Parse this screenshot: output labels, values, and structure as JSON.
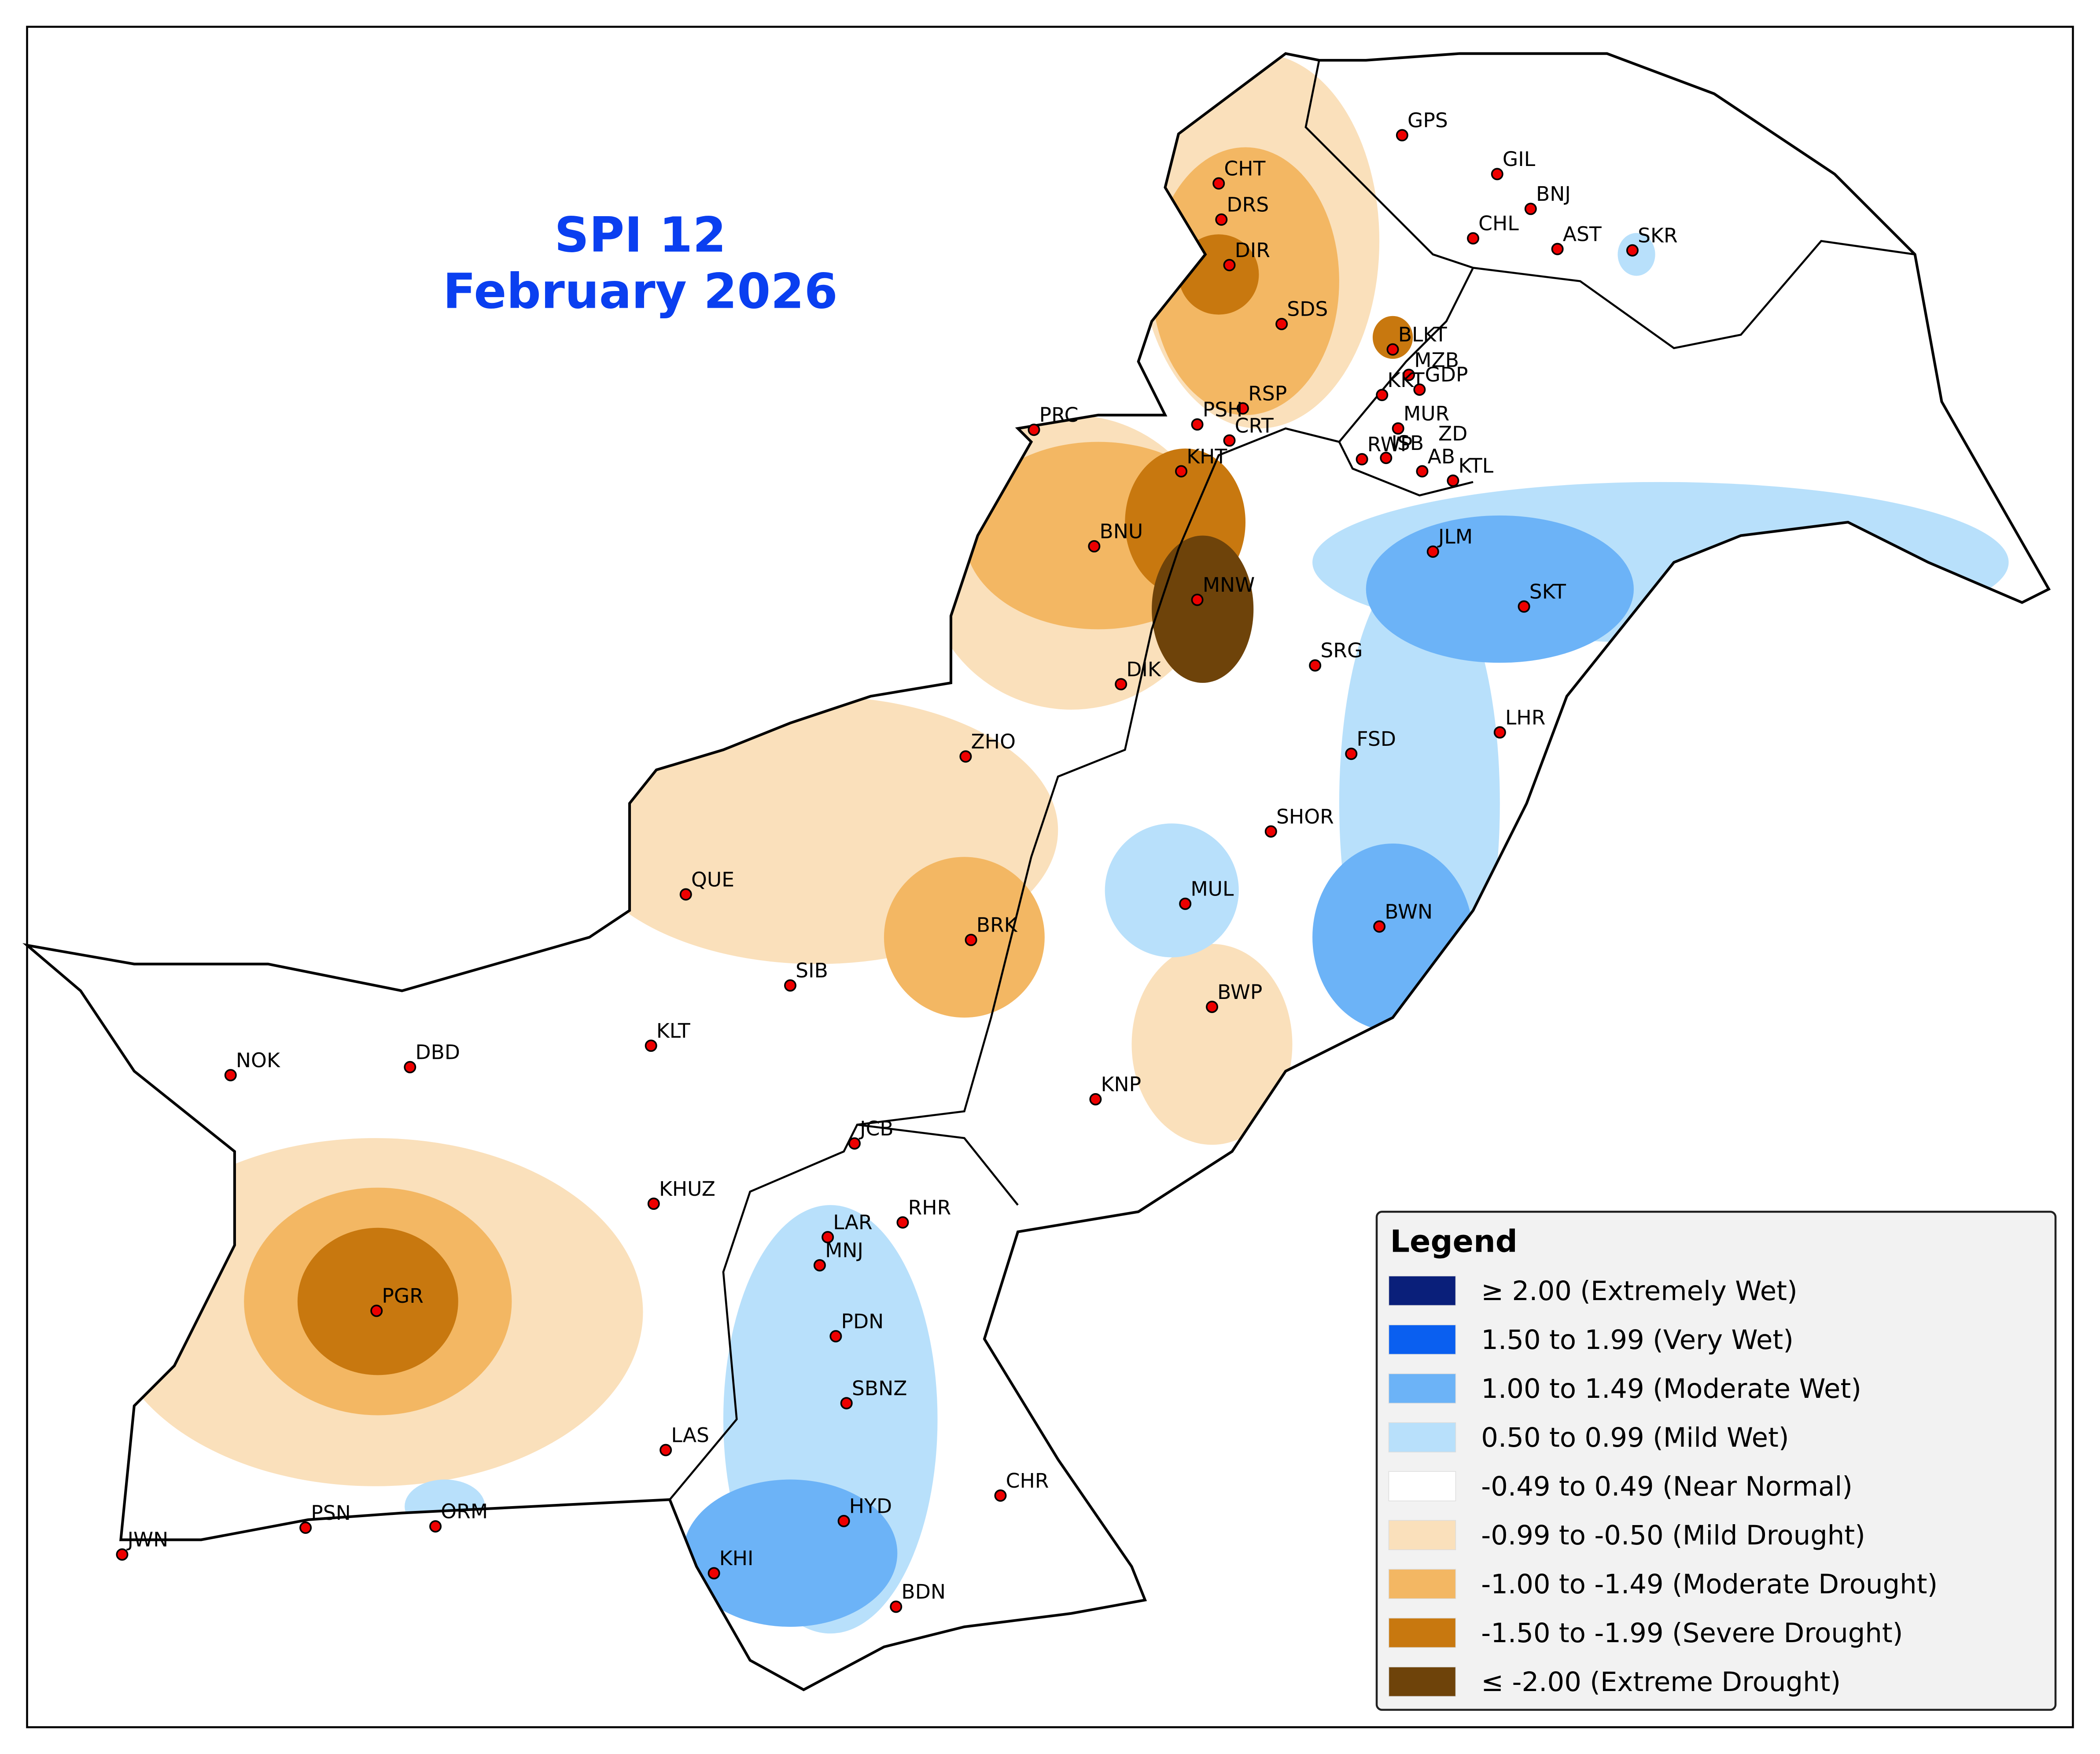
{
  "title": "SPI 12",
  "subtitle": "February 2026",
  "legend": {
    "title": "Legend",
    "items": [
      {
        "label": "≥ 2.00 (Extremely Wet)",
        "color": "#0a1f7a"
      },
      {
        "label": "1.50 to 1.99 (Very Wet)",
        "color": "#0a5ff0"
      },
      {
        "label": "1.00 to 1.49 (Moderate Wet)",
        "color": "#6cb3f7"
      },
      {
        "label": "0.50 to 0.99 (Mild Wet)",
        "color": "#b8e0fb"
      },
      {
        "label": "-0.49 to 0.49 (Near Normal)",
        "color": "#ffffff"
      },
      {
        "label": "-0.99 to -0.50 (Mild Drought)",
        "color": "#fae0bb"
      },
      {
        "label": "-1.00 to -1.49 (Moderate Drought)",
        "color": "#f3b763"
      },
      {
        "label": "-1.50 to -1.99 (Severe Drought)",
        "color": "#c8780f"
      },
      {
        "label": "≤ -2.00 (Extreme Drought)",
        "color": "#6e430a"
      }
    ]
  },
  "stations": [
    "GPS",
    "GIL",
    "BNJ",
    "CHL",
    "AST",
    "SKR",
    "CHT",
    "DRS",
    "DIR",
    "SDS",
    "BLKT",
    "MZB",
    "KKT",
    "GDP",
    "MUR",
    "RSP",
    "PSH",
    "CRT",
    "ISB",
    "ZD",
    "RWP",
    "AB",
    "KTL",
    "PRC",
    "KHT",
    "BNU",
    "MNW",
    "DIK",
    "ZHO",
    "SRG",
    "FSD",
    "LHR",
    "JLM",
    "SKT",
    "SHOR",
    "MUL",
    "BWN",
    "BRK",
    "QUE",
    "SIB",
    "BWP",
    "KLT",
    "NOK",
    "DBD",
    "KNP",
    "JCB",
    "KHUZ",
    "LAR",
    "RHR",
    "MNJ",
    "PGR",
    "PDN",
    "SBNZ",
    "LAS",
    "CHR",
    "HYD",
    "PSN",
    "ORM",
    "JWN",
    "KHI",
    "BDN"
  ]
}
